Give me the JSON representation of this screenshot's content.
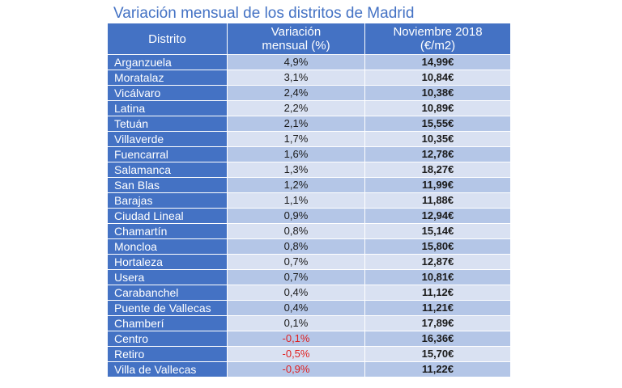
{
  "title": "Variación mensual de los distritos de Madrid",
  "headers": {
    "col1": "Distrito",
    "col2_line1": "Variación",
    "col2_line2": "mensual (%)",
    "col3_line1": "Noviembre 2018",
    "col3_line2": "(€/m2)"
  },
  "colors": {
    "header": "#4472c4",
    "row_dark": "#b4c6e7",
    "row_light": "#d9e1f2",
    "negative": "#e02020"
  },
  "rows": [
    {
      "district": "Arganzuela",
      "variation": "4,9%",
      "price": "14,99€",
      "negative": false
    },
    {
      "district": "Moratalaz",
      "variation": "3,1%",
      "price": "10,84€",
      "negative": false
    },
    {
      "district": "Vicálvaro",
      "variation": "2,4%",
      "price": "10,38€",
      "negative": false
    },
    {
      "district": "Latina",
      "variation": "2,2%",
      "price": "10,89€",
      "negative": false
    },
    {
      "district": "Tetuán",
      "variation": "2,1%",
      "price": "15,55€",
      "negative": false
    },
    {
      "district": "Villaverde",
      "variation": "1,7%",
      "price": "10,35€",
      "negative": false
    },
    {
      "district": "Fuencarral",
      "variation": "1,6%",
      "price": "12,78€",
      "negative": false
    },
    {
      "district": "Salamanca",
      "variation": "1,3%",
      "price": "18,27€",
      "negative": false
    },
    {
      "district": "San Blas",
      "variation": "1,2%",
      "price": "11,99€",
      "negative": false
    },
    {
      "district": "Barajas",
      "variation": "1,1%",
      "price": "11,88€",
      "negative": false
    },
    {
      "district": "Ciudad Lineal",
      "variation": "0,9%",
      "price": "12,94€",
      "negative": false
    },
    {
      "district": "Chamartín",
      "variation": "0,8%",
      "price": "15,14€",
      "negative": false
    },
    {
      "district": "Moncloa",
      "variation": "0,8%",
      "price": "15,80€",
      "negative": false
    },
    {
      "district": "Hortaleza",
      "variation": "0,7%",
      "price": "12,87€",
      "negative": false
    },
    {
      "district": "Usera",
      "variation": "0,7%",
      "price": "10,81€",
      "negative": false
    },
    {
      "district": "Carabanchel",
      "variation": "0,4%",
      "price": "11,12€",
      "negative": false
    },
    {
      "district": "Puente de Vallecas",
      "variation": "0,4%",
      "price": "11,21€",
      "negative": false
    },
    {
      "district": "Chamberí",
      "variation": "0,1%",
      "price": "17,89€",
      "negative": false
    },
    {
      "district": "Centro",
      "variation": "-0,1%",
      "price": "16,36€",
      "negative": true
    },
    {
      "district": "Retiro",
      "variation": "-0,5%",
      "price": "15,70€",
      "negative": true
    },
    {
      "district": "Villa de Vallecas",
      "variation": "-0,9%",
      "price": "11,22€",
      "negative": true
    }
  ]
}
